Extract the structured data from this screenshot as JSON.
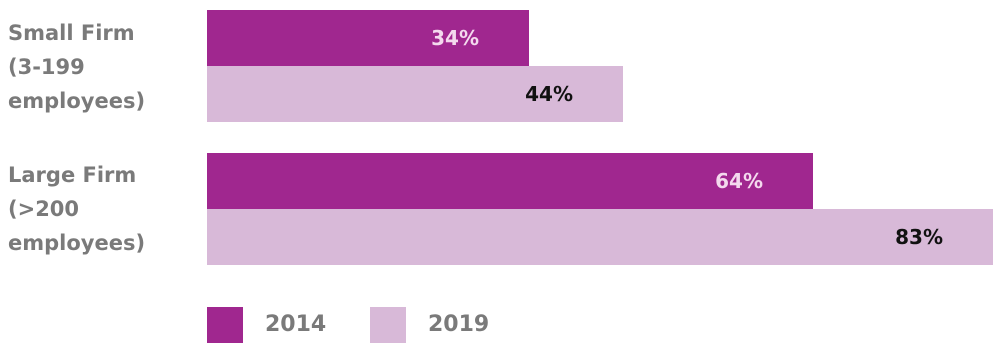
{
  "chart_data": {
    "type": "bar",
    "orientation": "horizontal",
    "categories": [
      "Small Firm\n(3-199\nemployees)",
      "Large Firm\n(>200\nemployees)"
    ],
    "series": [
      {
        "name": "2014",
        "values": [
          34,
          64
        ],
        "labels": [
          "34%",
          "64%"
        ],
        "color": "#a0278f",
        "label_color": "#f4d9ee"
      },
      {
        "name": "2019",
        "values": [
          44,
          83
        ],
        "labels": [
          "44%",
          "83%"
        ],
        "color": "#d8b9d8",
        "label_color": "#111111"
      }
    ],
    "xlim": [
      0,
      100
    ],
    "legend_position": "bottom",
    "grid": false
  }
}
